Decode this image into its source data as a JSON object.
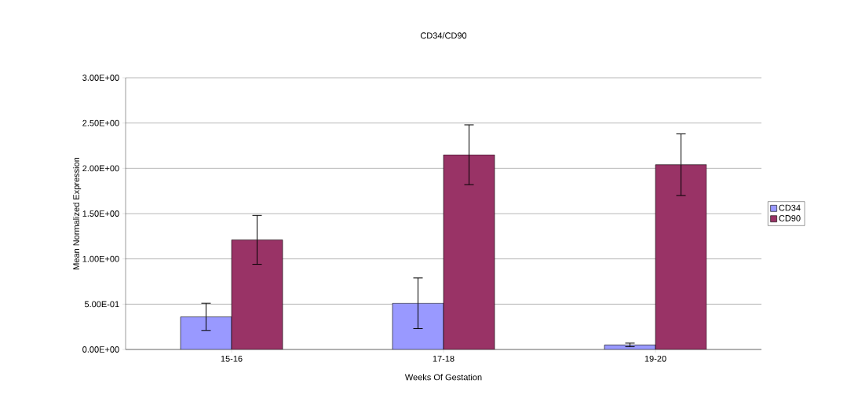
{
  "chart_data": {
    "type": "bar",
    "title": "CD34/CD90",
    "xlabel": "Weeks Of Gestation",
    "ylabel": "Mean Normalized Expression",
    "categories": [
      "15-16",
      "17-18",
      "19-20"
    ],
    "series": [
      {
        "name": "CD34",
        "color": "#9999ff",
        "values": [
          0.36,
          0.51,
          0.05
        ],
        "errors": [
          0.15,
          0.28,
          0.02
        ]
      },
      {
        "name": "CD90",
        "color": "#993366",
        "values": [
          1.21,
          2.15,
          2.04
        ],
        "errors": [
          0.27,
          0.33,
          0.34
        ]
      }
    ],
    "ylim": [
      0,
      3
    ],
    "yticks": [
      {
        "value": 0,
        "label": "0.00E+00"
      },
      {
        "value": 0.5,
        "label": "5.00E-01"
      },
      {
        "value": 1,
        "label": "1.00E+00"
      },
      {
        "value": 1.5,
        "label": "1.50E+00"
      },
      {
        "value": 2,
        "label": "2.00E+00"
      },
      {
        "value": 2.5,
        "label": "2.50E+00"
      },
      {
        "value": 3,
        "label": "3.00E+00"
      }
    ],
    "grid": "y",
    "legend": "right"
  }
}
